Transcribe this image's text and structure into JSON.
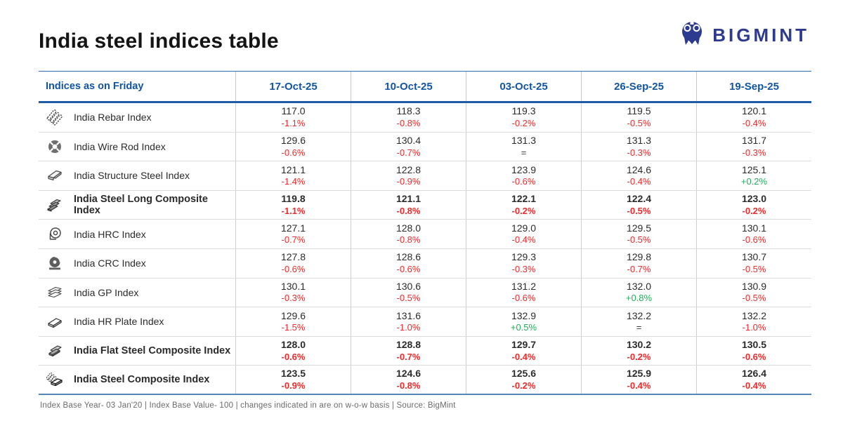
{
  "page": {
    "title": "India steel indices table",
    "footer": "Index Base Year- 03 Jan'20 | Index Base Value- 100 | changes indicated in are on w-o-w basis | Source: BigMint"
  },
  "logo": {
    "brand": "BIGMINT"
  },
  "colors": {
    "header_blue": "#1155a4",
    "brand_navy": "#2c3a8f",
    "negative_red": "#ea2c2c",
    "positive_green": "#27aa5e",
    "neutral_dark": "#3a3a3a"
  },
  "table": {
    "header": {
      "label_col": "Indices as on Friday",
      "date_cols": [
        "17-Oct-25",
        "10-Oct-25",
        "03-Oct-25",
        "26-Sep-25",
        "19-Sep-25"
      ]
    },
    "rows": [
      {
        "name": "India Rebar Index",
        "icon": "rebar-icon",
        "bold": false,
        "cells": [
          {
            "value": "117.0",
            "change": "-1.1%"
          },
          {
            "value": "118.3",
            "change": "-0.8%"
          },
          {
            "value": "119.3",
            "change": "-0.2%"
          },
          {
            "value": "119.5",
            "change": "-0.5%"
          },
          {
            "value": "120.1",
            "change": "-0.4%"
          }
        ]
      },
      {
        "name": "India Wire Rod Index",
        "icon": "wire-rod-icon",
        "bold": false,
        "cells": [
          {
            "value": "129.6",
            "change": "-0.6%"
          },
          {
            "value": "130.4",
            "change": "-0.7%"
          },
          {
            "value": "131.3",
            "change": "="
          },
          {
            "value": "131.3",
            "change": "-0.3%"
          },
          {
            "value": "131.7",
            "change": "-0.3%"
          }
        ]
      },
      {
        "name": "India Structure Steel Index",
        "icon": "structure-steel-icon",
        "bold": false,
        "cells": [
          {
            "value": "121.1",
            "change": "-1.4%"
          },
          {
            "value": "122.8",
            "change": "-0.9%"
          },
          {
            "value": "123.9",
            "change": "-0.6%"
          },
          {
            "value": "124.6",
            "change": "-0.4%"
          },
          {
            "value": "125.1",
            "change": "+0.2%"
          }
        ]
      },
      {
        "name": "India Steel Long Composite Index",
        "icon": "steel-long-composite-icon",
        "bold": true,
        "cells": [
          {
            "value": "119.8",
            "change": "-1.1%"
          },
          {
            "value": "121.1",
            "change": "-0.8%"
          },
          {
            "value": "122.1",
            "change": "-0.2%"
          },
          {
            "value": "122.4",
            "change": "-0.5%"
          },
          {
            "value": "123.0",
            "change": "-0.2%"
          }
        ]
      },
      {
        "name": "India HRC Index",
        "icon": "hrc-coil-icon",
        "bold": false,
        "cells": [
          {
            "value": "127.1",
            "change": "-0.7%"
          },
          {
            "value": "128.0",
            "change": "-0.8%"
          },
          {
            "value": "129.0",
            "change": "-0.4%"
          },
          {
            "value": "129.5",
            "change": "-0.5%"
          },
          {
            "value": "130.1",
            "change": "-0.6%"
          }
        ]
      },
      {
        "name": "India CRC Index",
        "icon": "crc-coil-icon",
        "bold": false,
        "cells": [
          {
            "value": "127.8",
            "change": "-0.6%"
          },
          {
            "value": "128.6",
            "change": "-0.6%"
          },
          {
            "value": "129.3",
            "change": "-0.3%"
          },
          {
            "value": "129.8",
            "change": "-0.7%"
          },
          {
            "value": "130.7",
            "change": "-0.5%"
          }
        ]
      },
      {
        "name": "India GP Index",
        "icon": "gp-sheets-icon",
        "bold": false,
        "cells": [
          {
            "value": "130.1",
            "change": "-0.3%"
          },
          {
            "value": "130.6",
            "change": "-0.5%"
          },
          {
            "value": "131.2",
            "change": "-0.6%"
          },
          {
            "value": "132.0",
            "change": "+0.8%"
          },
          {
            "value": "130.9",
            "change": "-0.5%"
          }
        ]
      },
      {
        "name": "India HR Plate Index",
        "icon": "hr-plate-icon",
        "bold": false,
        "cells": [
          {
            "value": "129.6",
            "change": "-1.5%"
          },
          {
            "value": "131.6",
            "change": "-1.0%"
          },
          {
            "value": "132.9",
            "change": "+0.5%"
          },
          {
            "value": "132.2",
            "change": "="
          },
          {
            "value": "132.2",
            "change": "-1.0%"
          }
        ]
      },
      {
        "name": "India Flat Steel Composite Index",
        "icon": "flat-steel-composite-icon",
        "bold": true,
        "cells": [
          {
            "value": "128.0",
            "change": "-0.6%"
          },
          {
            "value": "128.8",
            "change": "-0.7%"
          },
          {
            "value": "129.7",
            "change": "-0.4%"
          },
          {
            "value": "130.2",
            "change": "-0.2%"
          },
          {
            "value": "130.5",
            "change": "-0.6%"
          }
        ]
      },
      {
        "name": "India Steel Composite Index",
        "icon": "steel-composite-icon",
        "bold": true,
        "cells": [
          {
            "value": "123.5",
            "change": "-0.9%"
          },
          {
            "value": "124.6",
            "change": "-0.8%"
          },
          {
            "value": "125.6",
            "change": "-0.2%"
          },
          {
            "value": "125.9",
            "change": "-0.4%"
          },
          {
            "value": "126.4",
            "change": "-0.4%"
          }
        ]
      }
    ]
  }
}
